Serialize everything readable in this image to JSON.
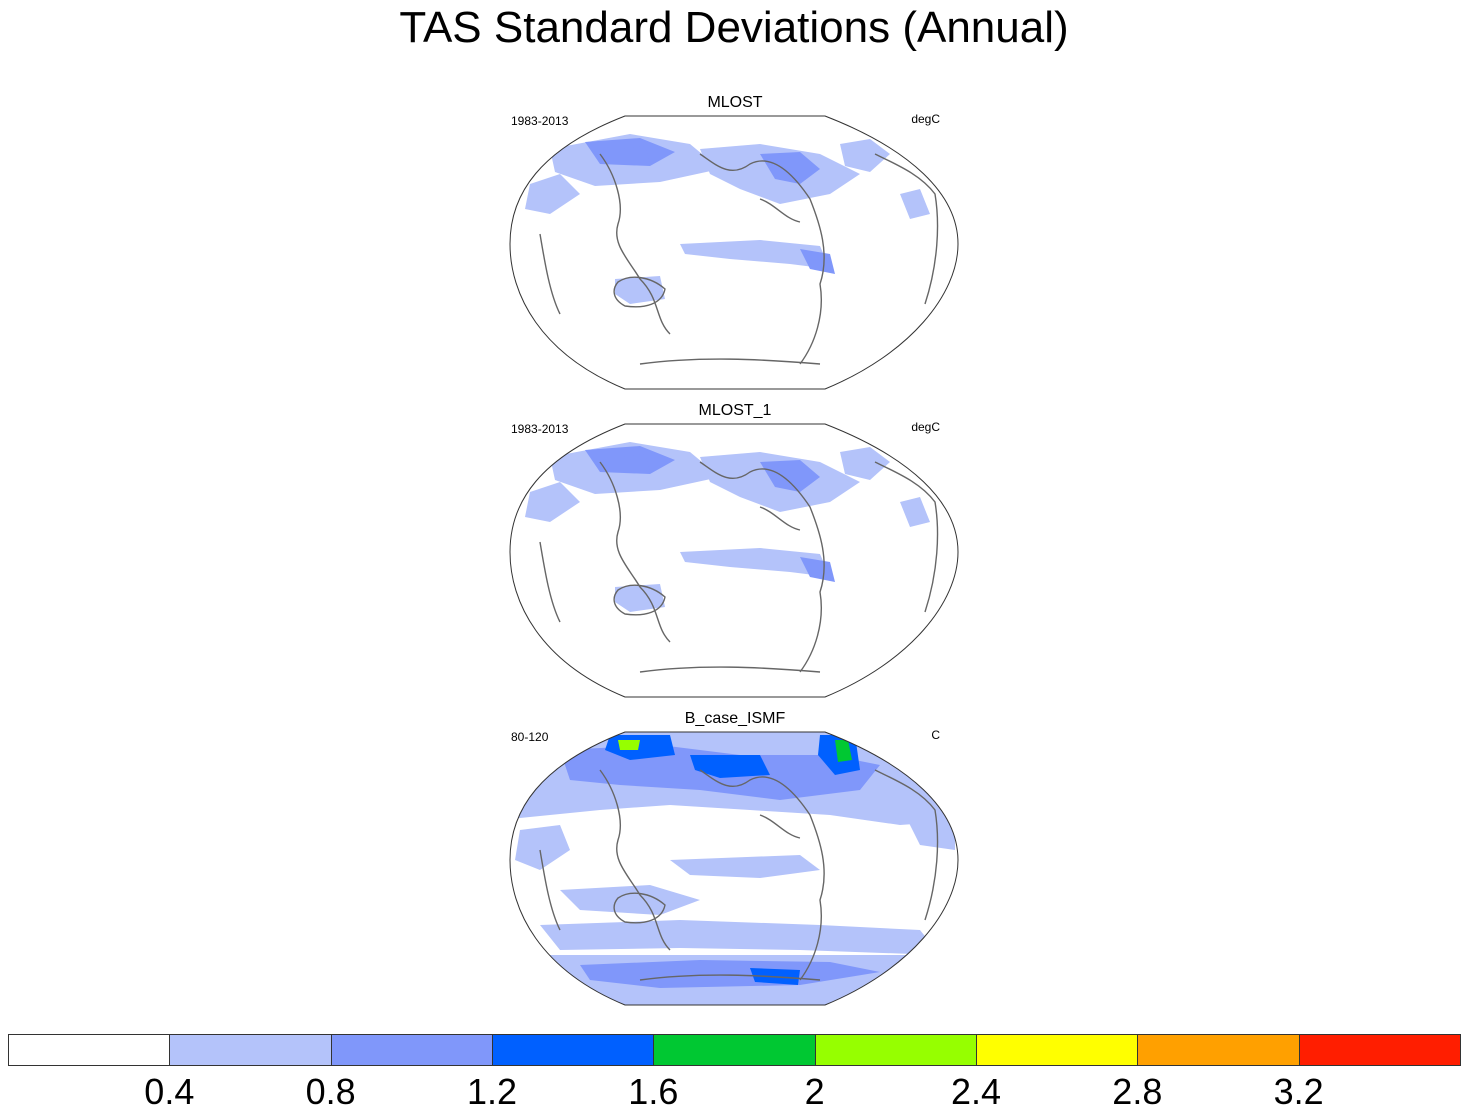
{
  "title": "TAS Standard Deviations (Annual)",
  "panels": [
    {
      "name": "MLOST",
      "period": "1983-2013",
      "units": "degC"
    },
    {
      "name": "MLOST_1",
      "period": "1983-2013",
      "units": "degC"
    },
    {
      "name": "B_case_ISMF",
      "period": "80-120",
      "units": "C"
    }
  ],
  "colorbar": {
    "levels": [
      "0.4",
      "0.8",
      "1.2",
      "1.6",
      "2",
      "2.4",
      "2.8",
      "3.2"
    ],
    "colors": [
      "#ffffff",
      "#b4c3fa",
      "#8097fa",
      "#0060ff",
      "#00c832",
      "#96ff00",
      "#ffff00",
      "#ffa000",
      "#ff1e00"
    ]
  }
}
